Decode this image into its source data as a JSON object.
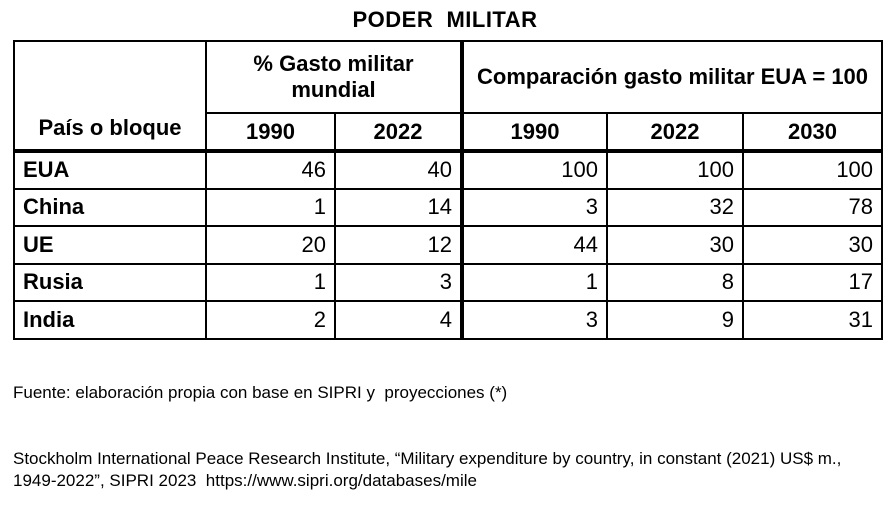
{
  "title": "PODER  MILITAR",
  "table": {
    "country_header": "País o bloque",
    "group1_header": "% Gasto militar mundial",
    "group2_header": "Comparación gasto militar EUA = 100",
    "years": [
      "1990",
      "2022",
      "1990",
      "2022",
      "2030"
    ],
    "rows": [
      {
        "name": "EUA",
        "values": [
          "46",
          "40",
          "100",
          "100",
          "100"
        ]
      },
      {
        "name": "China",
        "values": [
          "1",
          "14",
          "3",
          "32",
          "78"
        ]
      },
      {
        "name": "UE",
        "values": [
          "20",
          "12",
          "44",
          "30",
          "30"
        ]
      },
      {
        "name": "Rusia",
        "values": [
          "1",
          "3",
          "1",
          "8",
          "17"
        ]
      },
      {
        "name": "India",
        "values": [
          "2",
          "4",
          "3",
          "9",
          "31"
        ]
      }
    ]
  },
  "footer": {
    "line1": "Fuente: elaboración propia con base en SIPRI y  proyecciones (*)",
    "line2": "Stockholm International Peace Research Institute, “Military expenditure by country, in constant (2021) US$ m., 1949-2022”, SIPRI 2023  https://www.sipri.org/databases/mile"
  }
}
